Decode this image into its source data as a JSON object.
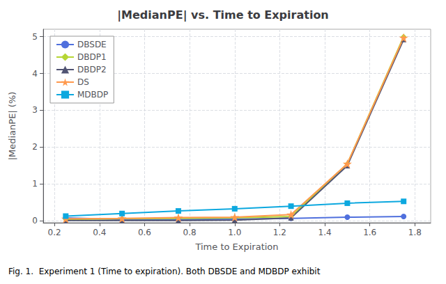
{
  "chart_data": {
    "type": "line",
    "title": "|MedianPE| vs. Time to Expiration",
    "xlabel": "Time to Expiration",
    "ylabel": "|MedianPE| (%)",
    "caption": "Fig. 1.  Experiment 1 (Time to expiration). Both DBSDE and MDBDP exhibit",
    "x": [
      0.25,
      0.5,
      0.75,
      1.0,
      1.25,
      1.5,
      1.75
    ],
    "xlim": [
      0.15,
      1.87
    ],
    "ylim": [
      -0.05,
      5.2
    ],
    "xticks": [
      0.2,
      0.4,
      0.6,
      0.8,
      {
        "value": 1.0,
        "label": "1.0"
      },
      1.2,
      1.4,
      1.6,
      1.8
    ],
    "yticks": [
      0,
      1,
      2,
      3,
      4,
      5
    ],
    "grid": true,
    "legend": "upper left",
    "series": [
      {
        "name": "DBSDE",
        "marker": "circle",
        "values": [
          0.08,
          0.04,
          0.04,
          0.05,
          0.07,
          0.1,
          0.12
        ]
      },
      {
        "name": "DBDP1",
        "marker": "diamond",
        "values": [
          0.04,
          0.06,
          0.07,
          0.08,
          0.12,
          1.55,
          5.0
        ]
      },
      {
        "name": "DBDP2",
        "marker": "triangle",
        "values": [
          0.01,
          0.01,
          0.01,
          0.02,
          0.08,
          1.5,
          4.92
        ]
      },
      {
        "name": "DS",
        "marker": "star",
        "values": [
          0.06,
          0.07,
          0.09,
          0.1,
          0.17,
          1.55,
          4.97
        ]
      },
      {
        "name": "MDBDP",
        "marker": "square",
        "values": [
          0.13,
          0.2,
          0.27,
          0.33,
          0.4,
          0.48,
          0.53
        ]
      }
    ]
  }
}
